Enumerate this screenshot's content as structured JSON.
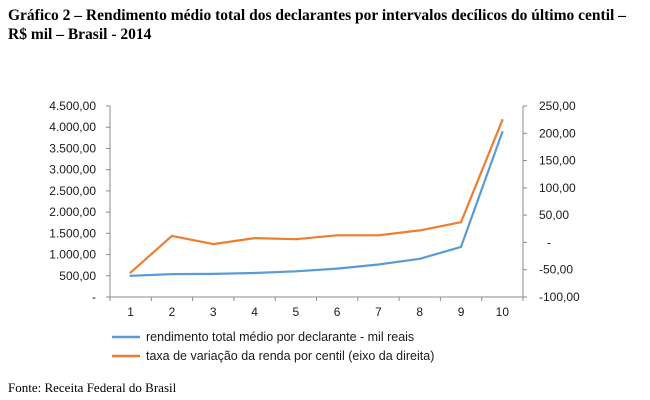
{
  "page": {
    "title": "Gráfico 2 – Rendimento médio total dos declarantes por intervalos decílicos do último centil – R$ mil – Brasil - 2014",
    "source": "Fonte: Receita Federal do Brasil"
  },
  "chart_data": {
    "type": "line",
    "title": "Gráfico 2 – Rendimento médio total dos declarantes por intervalos decílicos do último centil – R$ mil – Brasil - 2014",
    "categories": [
      "1",
      "2",
      "3",
      "4",
      "5",
      "6",
      "7",
      "8",
      "9",
      "10"
    ],
    "left_axis": {
      "range": [
        0,
        4500
      ],
      "ticks": [
        0,
        500,
        1000,
        1500,
        2000,
        2500,
        3000,
        3500,
        4000,
        4500
      ],
      "tick_labels": [
        "-",
        "500,00",
        "1.000,00",
        "1.500,00",
        "2.000,00",
        "2.500,00",
        "3.000,00",
        "3.500,00",
        "4.000,00",
        "4.500,00"
      ]
    },
    "right_axis": {
      "range": [
        -100,
        250
      ],
      "ticks": [
        -100,
        -50,
        0,
        50,
        100,
        150,
        200,
        250
      ],
      "tick_labels": [
        "-100,00",
        "-50,00",
        "-",
        "50,00",
        "100,00",
        "150,00",
        "200,00",
        "250,00"
      ]
    },
    "series": [
      {
        "name": "rendimento total médio por declarante - mil reais",
        "axis": "left",
        "color": "#5b9bd5",
        "values": [
          500,
          540,
          545,
          565,
          605,
          670,
          765,
          900,
          1180,
          3880
        ]
      },
      {
        "name": "taxa de variação da renda por centil (eixo da direita)",
        "axis": "right",
        "color": "#ed7d31",
        "values": [
          -55,
          12,
          -3,
          8,
          6,
          13,
          13,
          22,
          37,
          224
        ]
      }
    ],
    "legend_position": "bottom"
  }
}
